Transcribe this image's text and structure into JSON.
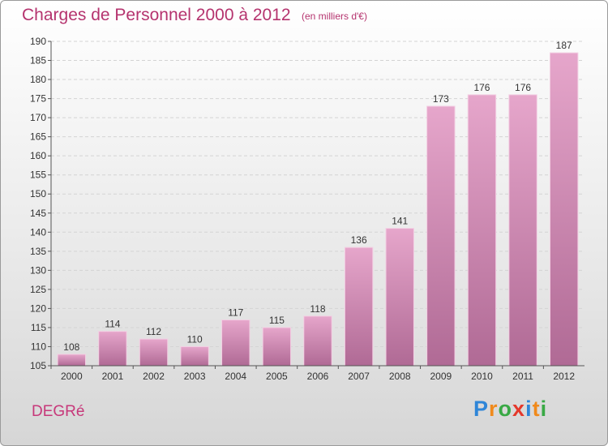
{
  "title": "Charges de Personnel 2000 à 2012",
  "subtitle": "(en milliers d'€)",
  "commune": "DEGRé",
  "logo": {
    "letters": [
      {
        "char": "P",
        "color": "#2f86d8"
      },
      {
        "char": "r",
        "color": "#f08a1c"
      },
      {
        "char": "o",
        "color": "#39a945"
      },
      {
        "char": "x",
        "color": "#e4382b"
      },
      {
        "char": "i",
        "color": "#2f86d8"
      },
      {
        "char": "t",
        "color": "#f08a1c"
      },
      {
        "char": "i",
        "color": "#39a945"
      }
    ]
  },
  "chart_data": {
    "type": "bar",
    "categories": [
      "2000",
      "2001",
      "2002",
      "2003",
      "2004",
      "2005",
      "2006",
      "2007",
      "2008",
      "2009",
      "2010",
      "2011",
      "2012"
    ],
    "values": [
      108,
      114,
      112,
      110,
      117,
      115,
      118,
      136,
      141,
      173,
      176,
      176,
      187
    ],
    "ylim": [
      105,
      190
    ],
    "yticks": [
      105,
      110,
      115,
      120,
      125,
      130,
      135,
      140,
      145,
      150,
      155,
      160,
      165,
      170,
      175,
      180,
      185,
      190
    ],
    "grid": true,
    "bar_color_top": "#e6a6cb",
    "bar_color_bottom": "#b06a95"
  }
}
